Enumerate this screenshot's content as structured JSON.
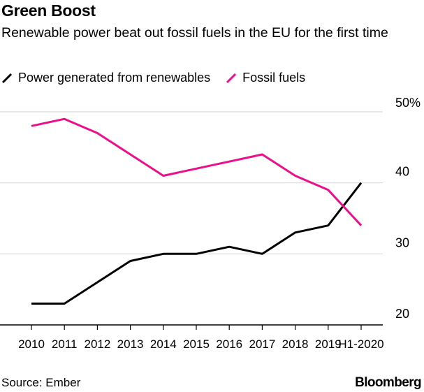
{
  "chart_data": {
    "type": "line",
    "title": "Green Boost",
    "subtitle": "Renewable power beat out fossil fuels in the EU for the first time",
    "categories": [
      "2010",
      "2011",
      "2012",
      "2013",
      "2014",
      "2015",
      "2016",
      "2017",
      "2018",
      "2019",
      "H1-2020"
    ],
    "series": [
      {
        "name": "Power generated from renewables",
        "color": "#000000",
        "values": [
          23,
          23,
          26,
          29,
          30,
          30,
          31,
          30,
          33,
          34,
          40
        ]
      },
      {
        "name": "Fossil fuels",
        "color": "#ec0f8c",
        "values": [
          48,
          49,
          47,
          44,
          41,
          42,
          43,
          44,
          41,
          39,
          34
        ]
      }
    ],
    "yticks": [
      "20",
      "30",
      "40",
      "50%"
    ],
    "ytick_values": [
      20,
      30,
      40,
      50
    ],
    "ylim": [
      20,
      50
    ],
    "xlabel": "",
    "ylabel": "",
    "legend_position": "top-left",
    "grid": true
  },
  "source": "Source: Ember",
  "brand": "Bloomberg"
}
